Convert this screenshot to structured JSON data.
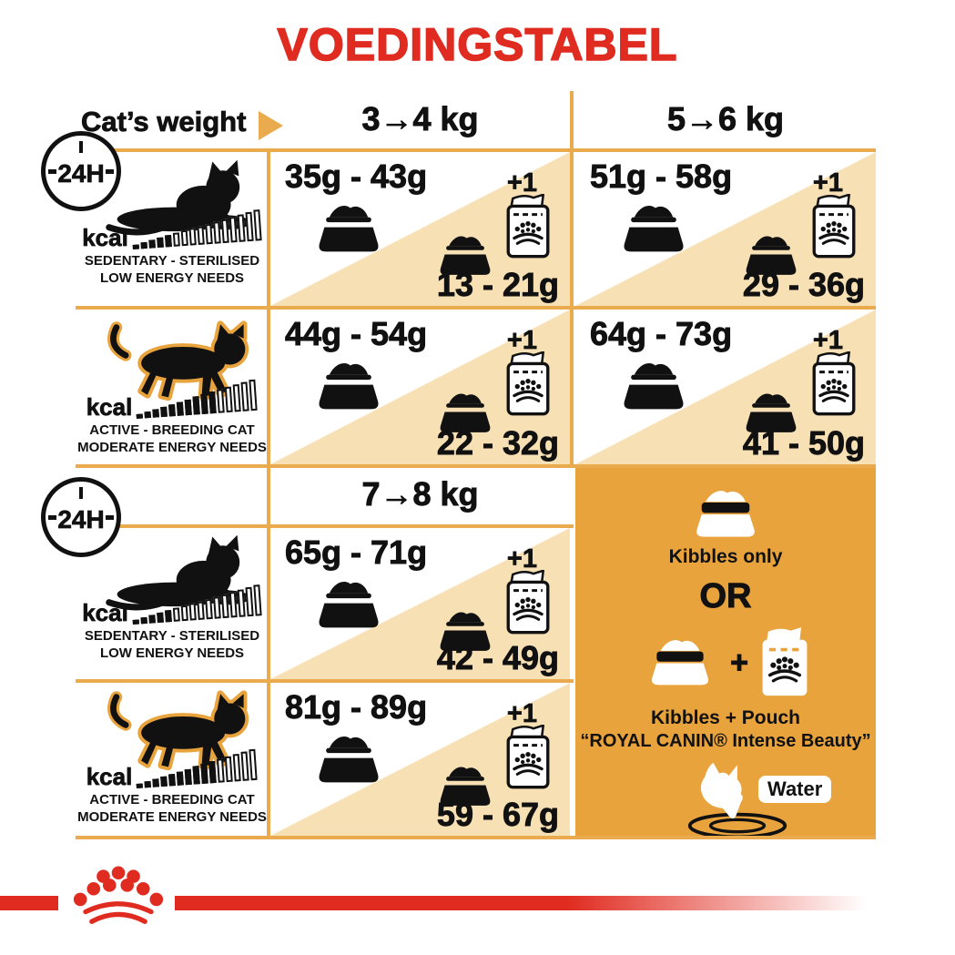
{
  "colors": {
    "red": "#E02B20",
    "amber_panel": "#E8A33D",
    "grid_line": "#EAAA4E",
    "beige": "#F7E0B4",
    "ink": "#111111"
  },
  "title": "VOEDINGSTABEL",
  "header": {
    "cats_weight": "Cat’s weight",
    "weight_col_1": "3→4 kg",
    "weight_col_2": "5→6 kg",
    "weight_col_3": "7→8 kg"
  },
  "labels": {
    "h24": "24H",
    "kcal": "kcal",
    "plus_one": "+1"
  },
  "profiles": {
    "sedentary": {
      "line1": "SEDENTARY - STERILISED",
      "line2": "LOW ENERGY NEEDS"
    },
    "active": {
      "line1": "ACTIVE - BREEDING CAT",
      "line2": "MODERATE ENERGY NEEDS"
    }
  },
  "cells": {
    "sedentary_3_4": {
      "kibbles_only": "35g - 43g",
      "kibbles_with_pouch": "13 - 21g"
    },
    "sedentary_5_6": {
      "kibbles_only": "51g - 58g",
      "kibbles_with_pouch": "29 - 36g"
    },
    "active_3_4": {
      "kibbles_only": "44g - 54g",
      "kibbles_with_pouch": "22 - 32g"
    },
    "active_5_6": {
      "kibbles_only": "64g - 73g",
      "kibbles_with_pouch": "41 - 50g"
    },
    "sedentary_7_8": {
      "kibbles_only": "65g - 71g",
      "kibbles_with_pouch": "42 - 49g"
    },
    "active_7_8": {
      "kibbles_only": "81g - 89g",
      "kibbles_with_pouch": "59 - 67g"
    }
  },
  "legend": {
    "kibbles_only": "Kibbles only",
    "or": "OR",
    "plus": "+",
    "kibbles_pouch": "Kibbles + Pouch",
    "pouch_product": "“ROYAL CANIN® Intense Beauty”",
    "water": "Water"
  },
  "kcal_meter": {
    "sedentary": {
      "total": 16,
      "filled": 5
    },
    "active": {
      "total": 15,
      "filled": 10
    }
  }
}
